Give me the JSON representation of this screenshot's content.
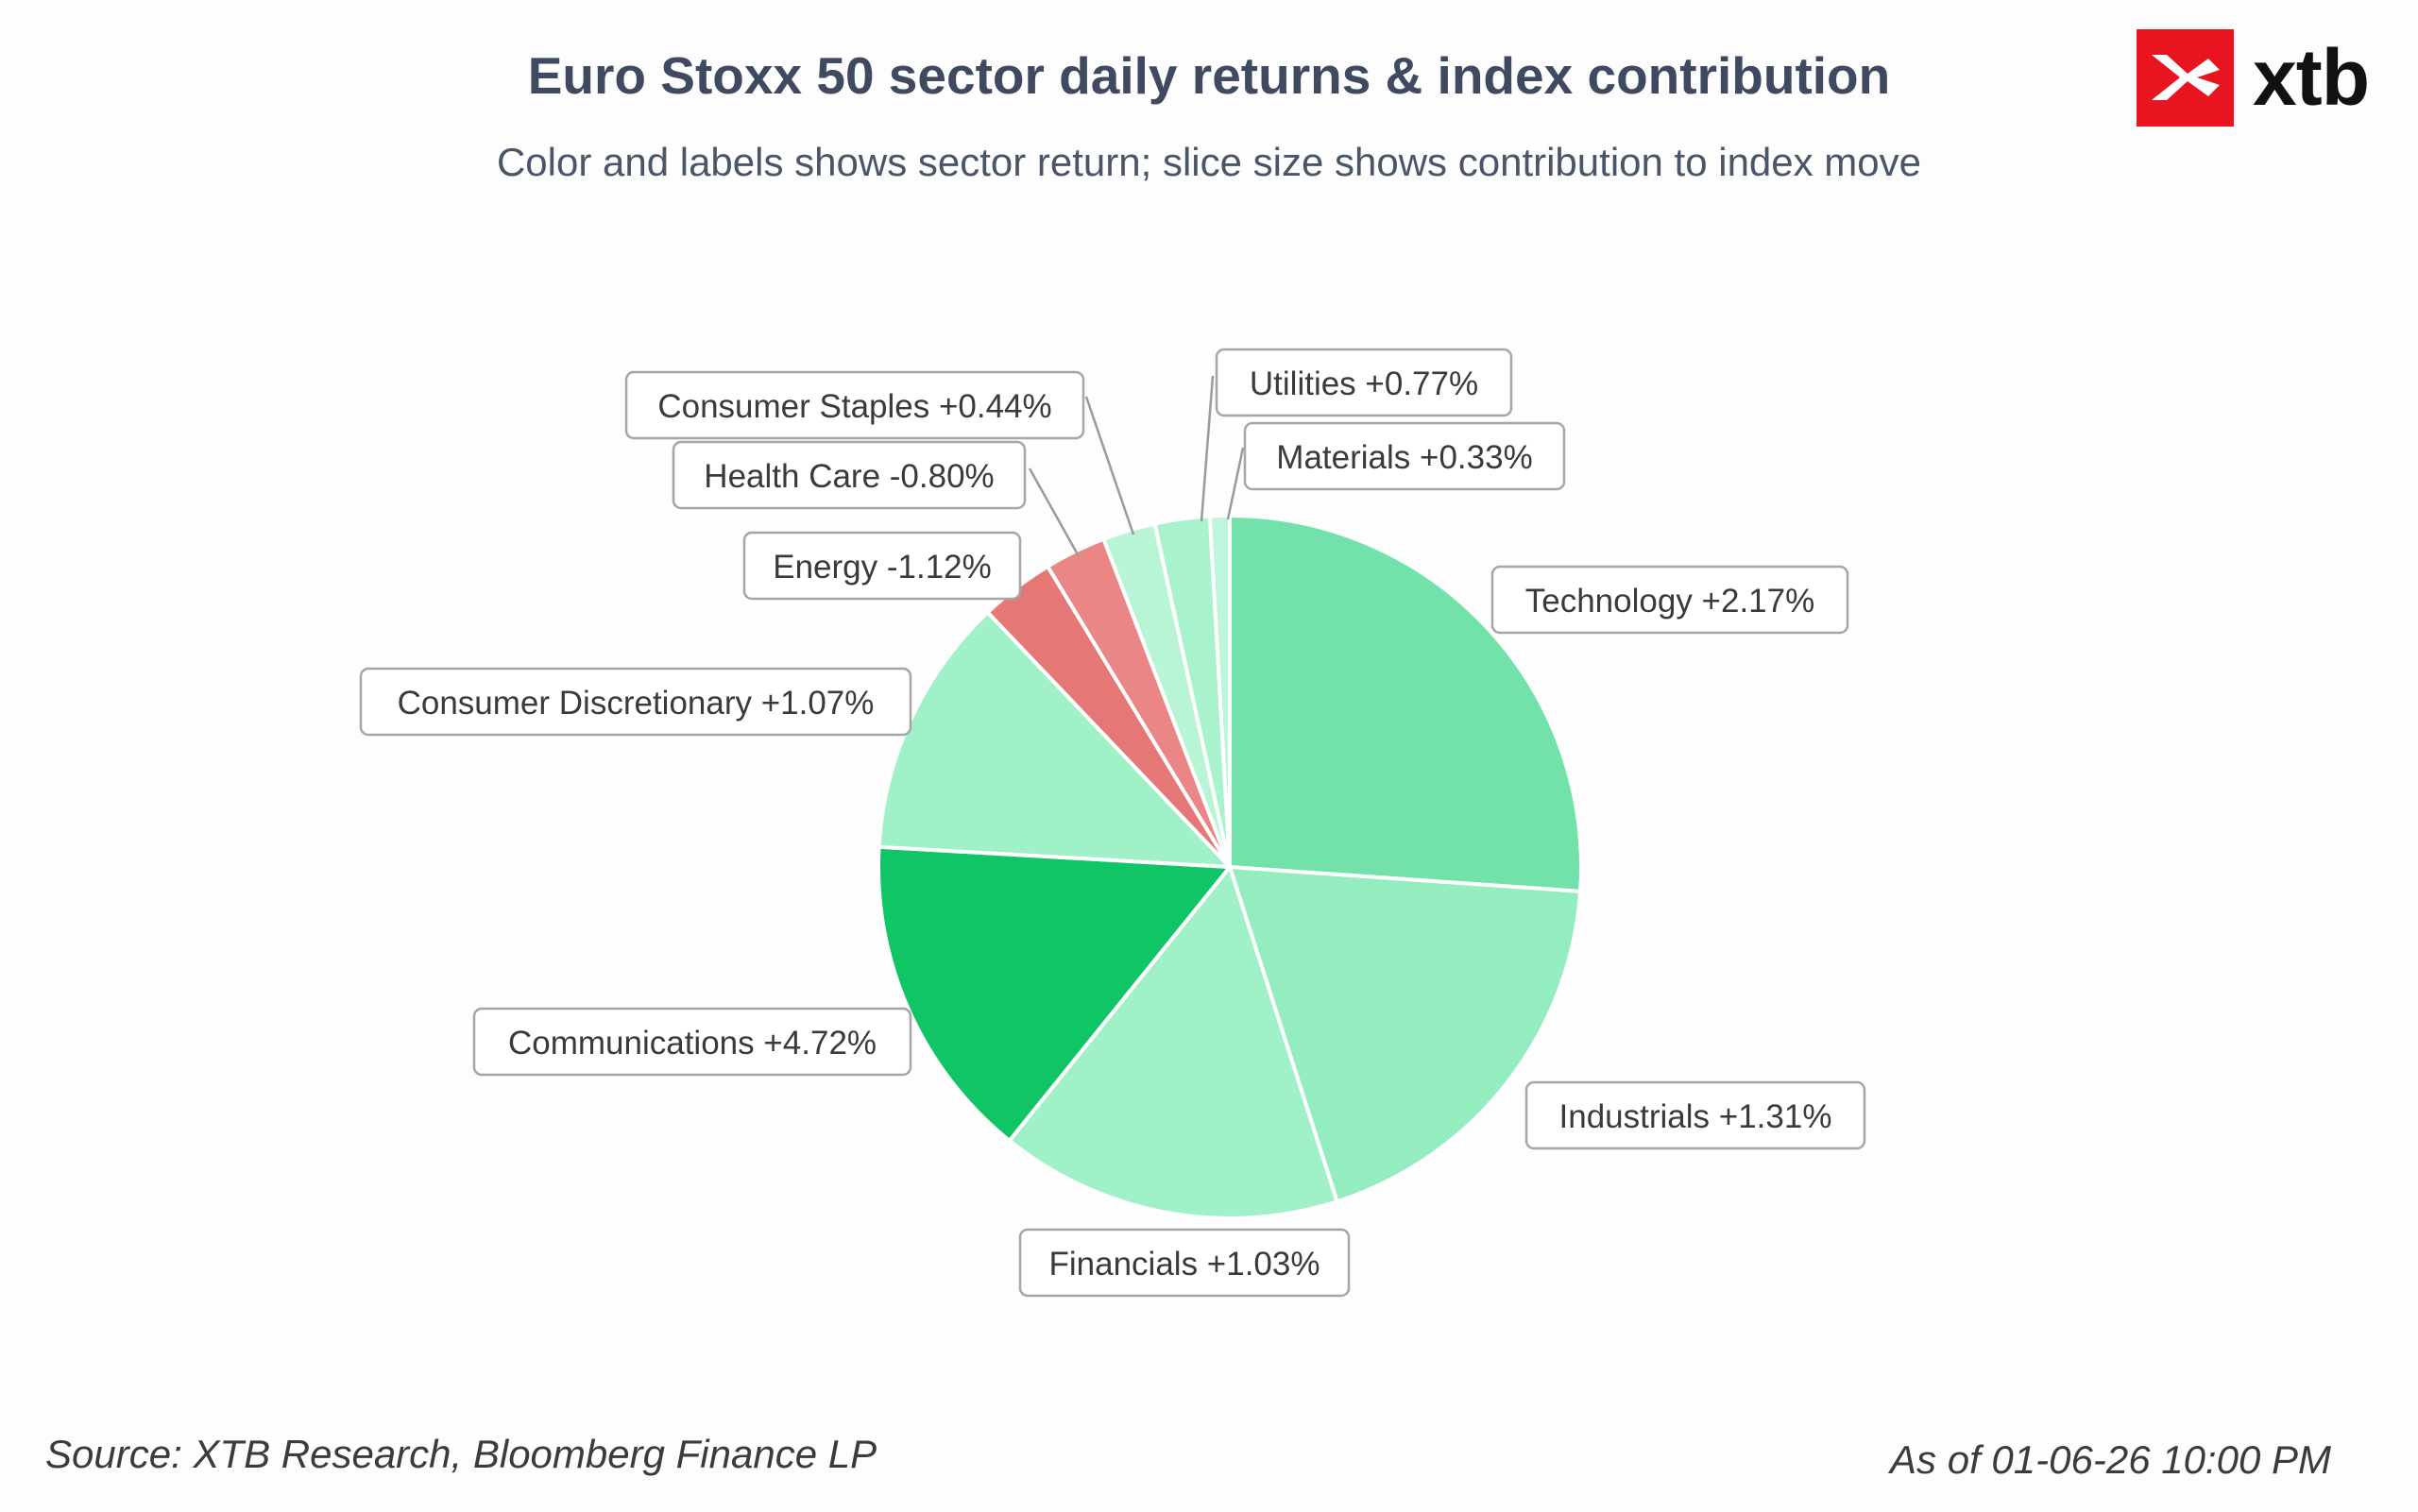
{
  "header": {
    "title": "Euro Stoxx 50 sector daily returns & index contribution",
    "subtitle": "Color and labels shows sector return; slice size shows contribution to index move"
  },
  "brand": {
    "logo_text": "xtb",
    "logo_color": "#e8141f",
    "icon": "xtb-logo-icon"
  },
  "footer": {
    "source": "Source: XTB Research, Bloomberg Finance LP",
    "as_of": "As of 01-06-26 10:00 PM"
  },
  "chart_data": {
    "type": "pie",
    "title": "Euro Stoxx 50 sector daily returns & index contribution",
    "subtitle": "Color and labels shows sector return; slice size shows contribution to index move",
    "start": "12 o'clock",
    "direction": "clockwise",
    "slices": [
      {
        "sector": "Technology",
        "label": "Technology +2.17%",
        "return_pct": 2.17,
        "share_pct": 25.9,
        "color": "#72e2aa"
      },
      {
        "sector": "Industrials",
        "label": "Industrials +1.31%",
        "return_pct": 1.31,
        "share_pct": 18.8,
        "color": "#93edbf"
      },
      {
        "sector": "Financials",
        "label": "Financials +1.03%",
        "return_pct": 1.03,
        "share_pct": 15.6,
        "color": "#a0f0c8"
      },
      {
        "sector": "Communications",
        "label": "Communications +4.72%",
        "return_pct": 4.72,
        "share_pct": 15.0,
        "color": "#0fc565"
      },
      {
        "sector": "Consumer Discretionary",
        "label": "Consumer Discretionary +1.07%",
        "return_pct": 1.07,
        "share_pct": 11.9,
        "color": "#a0f0c8"
      },
      {
        "sector": "Energy",
        "label": "Energy -1.12%",
        "return_pct": -1.12,
        "share_pct": 3.4,
        "color": "#e57777"
      },
      {
        "sector": "Health Care",
        "label": "Health Care -0.80%",
        "return_pct": -0.8,
        "share_pct": 2.8,
        "color": "#ea8686"
      },
      {
        "sector": "Consumer Staples",
        "label": "Consumer Staples +0.44%",
        "return_pct": 0.44,
        "share_pct": 2.4,
        "color": "#b8f5d6"
      },
      {
        "sector": "Utilities",
        "label": "Utilities +0.77%",
        "return_pct": 0.77,
        "share_pct": 2.5,
        "color": "#a8f2cd"
      },
      {
        "sector": "Materials",
        "label": "Materials +0.33%",
        "return_pct": 0.33,
        "share_pct": 0.9,
        "color": "#bdf6da"
      }
    ]
  }
}
